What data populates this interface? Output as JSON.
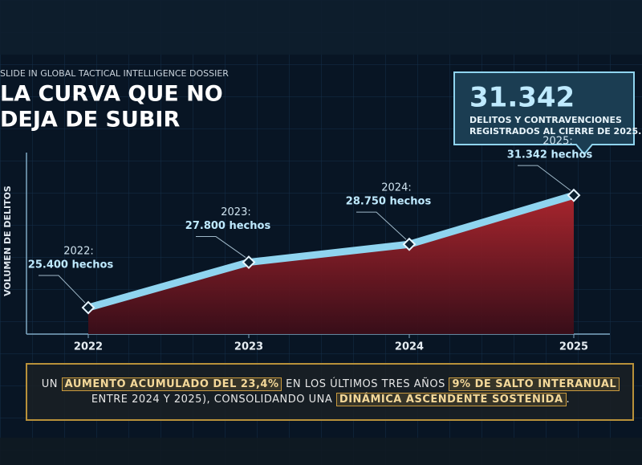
{
  "header": {
    "kicker": "SLIDE IN GLOBAL TACTICAL INTELLIGENCE DOSSIER",
    "title_lines": [
      "LA CURVA QUE NO",
      "DEJA DE SUBIR"
    ]
  },
  "callout": {
    "value": "31.342",
    "lines": [
      "DELITOS Y CONTRAVENCIONES",
      "REGISTRADOS AL CIERRE DE 2025."
    ]
  },
  "chart_data": {
    "type": "area",
    "y_label": "VOLUMEN DE DELITOS",
    "categories": [
      "2022",
      "2023",
      "2024",
      "2025"
    ],
    "values": [
      25400,
      27800,
      28750,
      31342
    ],
    "value_labels": [
      "25.400 hechos",
      "27.800 hechos",
      "28.750 hechos",
      "31.342 hechos"
    ],
    "point_titles": [
      "2022:",
      "2023:",
      "2024:",
      "2025:"
    ],
    "line_color": "#8fd4ef",
    "fill_color": "#a3222a",
    "ylim": [
      24000,
      33600
    ]
  },
  "summary": {
    "lines": [
      [
        {
          "text": "UN ",
          "highlight": false
        },
        {
          "text": "AUMENTO ACUMULADO DEL 23,4%",
          "highlight": true
        },
        {
          "text": " EN LOS ÚLTIMOS TRES AÑOS ",
          "highlight": false
        },
        {
          "text": "9% DE SALTO INTERANUAL",
          "highlight": true
        }
      ],
      [
        {
          "text": "ENTRE 2024 Y 2025), CONSOLIDANDO UNA ",
          "highlight": false
        },
        {
          "text": "DINÁMICA ASCENDENTE SOSTENIDA",
          "highlight": true
        },
        {
          "text": ".",
          "highlight": false
        }
      ]
    ]
  }
}
